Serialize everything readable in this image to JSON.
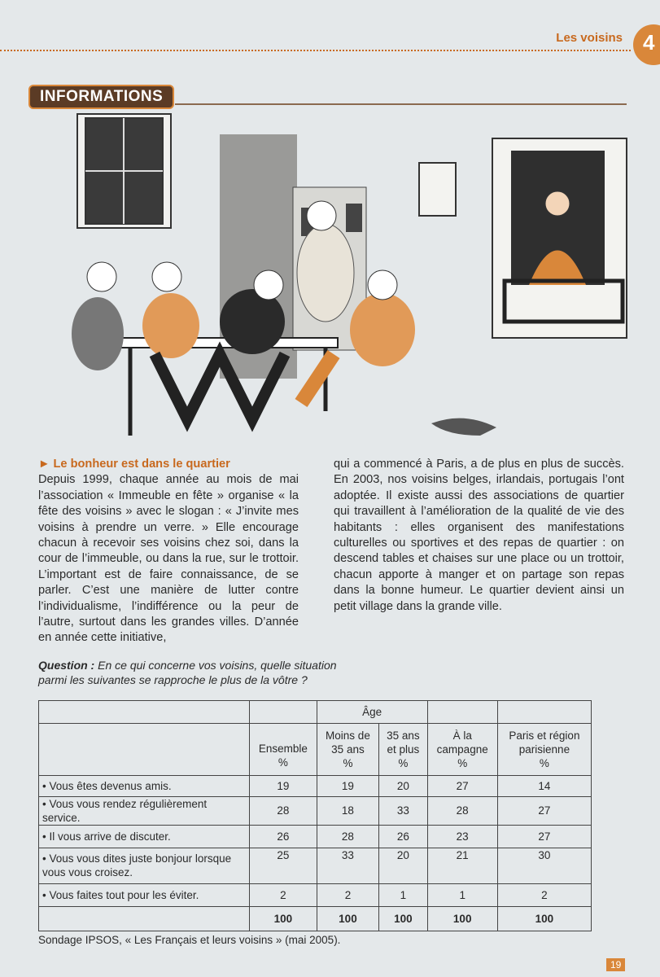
{
  "header": {
    "chapter_title": "Les voisins",
    "chapter_number": "4"
  },
  "section_label": "INFORMATIONS",
  "article": {
    "subtitle": "Le bonheur est dans le quartier",
    "left_text": "Depuis 1999, chaque année au mois de mai l’association « Immeuble en fête » organise « la fête des voisins » avec le slogan : « J’invite mes voisins à prendre un verre. » Elle encourage chacun à recevoir ses voisins chez soi, dans la cour de l’immeuble, ou dans la rue, sur le trottoir. L’important est de faire connaissance, de se parler. C’est une manière de lutter contre l’individualisme, l’indifférence ou la peur de l’autre, surtout dans les grandes villes. D’année en année cette initiative,",
    "right_text": "qui a commencé à Paris, a de plus en plus de succès. En 2003, nos voisins belges, irlandais, portugais l’ont adoptée. Il existe aussi des associations de quartier qui travaillent à l’amélioration de la qualité de vie des habitants : elles organisent des manifestations culturelles ou sportives et des repas de quartier : on descend tables et chaises sur une place ou un trottoir, chacun apporte à manger et on partage son repas dans la bonne humeur. Le quartier devient ainsi un petit village dans la grande ville."
  },
  "question": {
    "label": "Question :",
    "line1": "En ce qui concerne vos voisins, quelle situation",
    "line2": "parmi les suivantes se rapproche le plus de la vôtre ?"
  },
  "table": {
    "group_header": "Âge",
    "columns": [
      {
        "l1": "Ensemble",
        "l2": "",
        "unit": "%"
      },
      {
        "l1": "Moins de",
        "l2": "35 ans",
        "unit": "%"
      },
      {
        "l1": "35 ans",
        "l2": "et plus",
        "unit": "%"
      },
      {
        "l1": "À la",
        "l2": "campagne",
        "unit": "%"
      },
      {
        "l1": "Paris et région",
        "l2": "parisienne",
        "unit": "%"
      }
    ],
    "rows": [
      {
        "label": "• Vous êtes devenus amis.",
        "values": [
          "19",
          "19",
          "20",
          "27",
          "14"
        ]
      },
      {
        "label": "• Vous vous rendez régulièrement service.",
        "values": [
          "28",
          "18",
          "33",
          "28",
          "27"
        ]
      },
      {
        "label": "• Il vous arrive de discuter.",
        "values": [
          "26",
          "28",
          "26",
          "23",
          "27"
        ]
      },
      {
        "label": "• Vous vous dites juste bonjour lorsque vous vous croisez.",
        "values": [
          "25",
          "33",
          "20",
          "21",
          "30"
        ]
      },
      {
        "label": "• Vous faites tout pour les éviter.",
        "values": [
          "2",
          "2",
          "1",
          "1",
          "2"
        ]
      }
    ],
    "totals": [
      "100",
      "100",
      "100",
      "100",
      "100"
    ]
  },
  "source": "Sondage IPSOS, « Les Français et leurs voisins » (mai 2005).",
  "page_number": "19",
  "colors": {
    "accent": "#c8691e",
    "banner": "#5b3b25",
    "page": "#e4e8ea"
  }
}
